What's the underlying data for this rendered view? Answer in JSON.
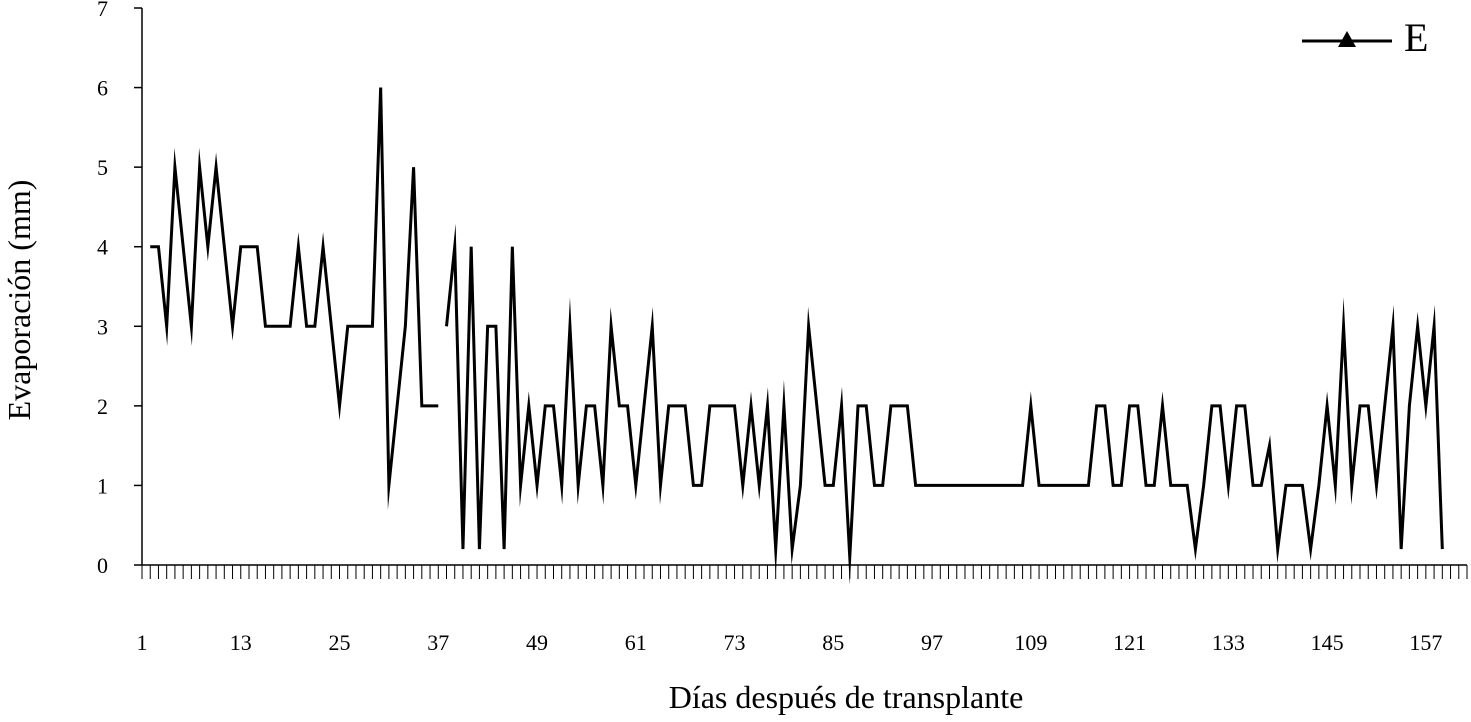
{
  "chart_data": {
    "type": "line",
    "title": "",
    "xlabel": "Días después de transplante",
    "ylabel": "Evaporación (mm)",
    "ylim": [
      0,
      7
    ],
    "yticks": [
      "0",
      "1",
      "2",
      "3",
      "4",
      "5",
      "6",
      "7"
    ],
    "xlim": [
      1,
      162
    ],
    "xtick_labels": [
      "1",
      "13",
      "25",
      "37",
      "49",
      "61",
      "73",
      "85",
      "97",
      "109",
      "121",
      "133",
      "145",
      "157"
    ],
    "xtick_values": [
      1,
      13,
      25,
      37,
      49,
      61,
      73,
      85,
      97,
      109,
      121,
      133,
      145,
      157
    ],
    "grid": false,
    "legend_position": "top-right",
    "series": [
      {
        "name": "E",
        "marker": "triangle",
        "color": "#000000",
        "segments": [
          {
            "x_start": 2,
            "values": [
              4,
              4,
              3,
              5,
              4,
              3,
              5,
              4,
              5,
              4,
              3,
              4,
              4,
              4,
              3,
              3,
              3,
              3,
              4,
              3,
              3,
              4,
              3,
              2,
              3,
              3,
              3,
              3,
              6,
              1,
              2,
              3,
              5,
              2,
              2,
              2
            ]
          },
          {
            "x_start": 38,
            "values": [
              3,
              4,
              0.2,
              4,
              0.2,
              3,
              3,
              0.2,
              4,
              1,
              2,
              1,
              2,
              2,
              1,
              3,
              1,
              2,
              2,
              1,
              3,
              2,
              2,
              1,
              2,
              3,
              1,
              2,
              2,
              2,
              1,
              1,
              2,
              2,
              2,
              2,
              1,
              2,
              1,
              2,
              0.2,
              2,
              0.2,
              1,
              3,
              2,
              1,
              1,
              2,
              0.1,
              2,
              2,
              1,
              1,
              2,
              2,
              2,
              1,
              1,
              1,
              1,
              1,
              1,
              1,
              1,
              1,
              1,
              1,
              1,
              1,
              1,
              2,
              1,
              1,
              1,
              1,
              1,
              1,
              1,
              2,
              2,
              1,
              1,
              2,
              2,
              1,
              1,
              2,
              1,
              1,
              1,
              0.2,
              1,
              2,
              2,
              1,
              2,
              2,
              1,
              1,
              1.5,
              0.2,
              1,
              1,
              1,
              0.2,
              1,
              2,
              1,
              3,
              1,
              2,
              2,
              1,
              2,
              3,
              0.2,
              2,
              3,
              2,
              3,
              0.2
            ]
          }
        ]
      }
    ]
  }
}
